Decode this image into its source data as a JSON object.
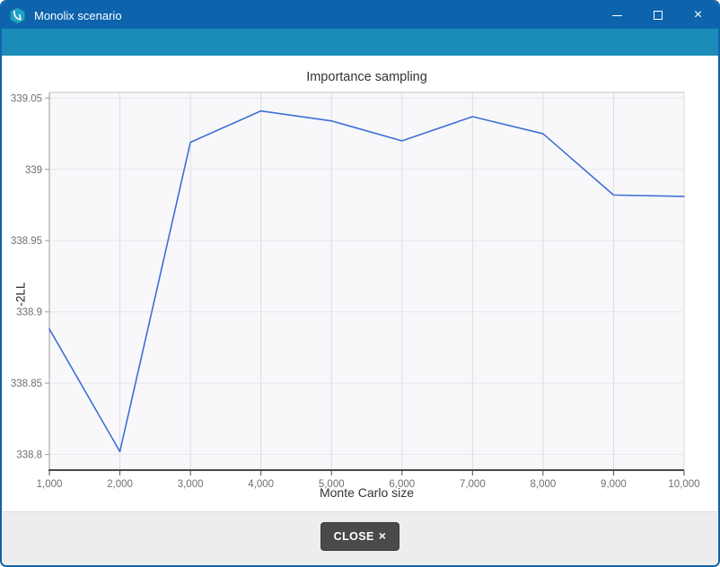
{
  "window": {
    "title": "Monolix scenario",
    "controls": {
      "minimize": "minimize",
      "maximize": "maximize",
      "close": "×"
    }
  },
  "chart_data": {
    "type": "line",
    "title": "Importance sampling",
    "xlabel": "Monte Carlo size",
    "ylabel": "-2LL",
    "x": [
      1000,
      2000,
      3000,
      4000,
      5000,
      6000,
      7000,
      8000,
      9000,
      10000
    ],
    "values": [
      338.888,
      338.802,
      339.019,
      339.041,
      339.034,
      339.02,
      339.037,
      339.025,
      338.982,
      338.981
    ],
    "xlim": [
      1000,
      10000
    ],
    "ylim": [
      338.789,
      339.054
    ],
    "xticks": {
      "values": [
        1000,
        2000,
        3000,
        4000,
        5000,
        6000,
        7000,
        8000,
        9000,
        10000
      ],
      "labels": [
        "1,000",
        "2,000",
        "3,000",
        "4,000",
        "5,000",
        "6,000",
        "7,000",
        "8,000",
        "9,000",
        "10,000"
      ]
    },
    "yticks": {
      "values": [
        338.8,
        338.85,
        338.9,
        338.95,
        339,
        339.05
      ],
      "labels": [
        "338.8",
        "338.85",
        "338.9",
        "338.95",
        "339",
        "339.05"
      ]
    },
    "grid": true,
    "legend": "none",
    "line_color": "#3e6fd3"
  },
  "footer": {
    "close_label": "CLOSE",
    "close_icon": "×"
  },
  "colors": {
    "titlebar": "#0d63ac",
    "header_band": "#1b8cb8",
    "window_border": "#0d63ac",
    "line": "#3e6fd3",
    "plot_background": "#f8f8fb",
    "button": "#4a4a4a"
  }
}
